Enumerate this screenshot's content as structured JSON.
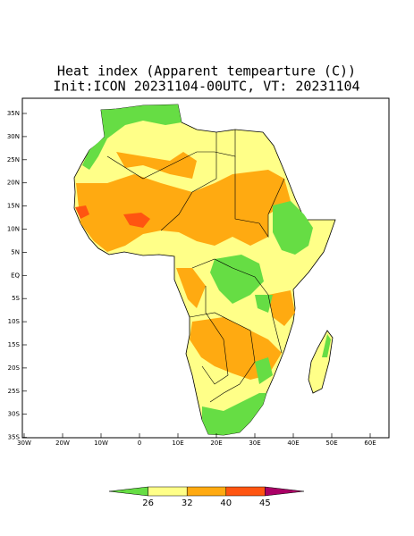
{
  "title": [
    "Heat index (Apparent tempearture (C))",
    "Init:ICON 20231104-00UTC, VT: 20231104"
  ],
  "map": {
    "lon_ticks": [
      "30W",
      "20W",
      "10W",
      "0",
      "10E",
      "20E",
      "30E",
      "40E",
      "50E",
      "60E"
    ],
    "lat_ticks": [
      "35N",
      "30N",
      "25N",
      "20N",
      "15N",
      "10N",
      "5N",
      "EQ",
      "5S",
      "10S",
      "15S",
      "20S",
      "25S",
      "30S",
      "35S"
    ]
  },
  "colorbar": {
    "levels": [
      26,
      32,
      40,
      45
    ],
    "colors": [
      "#66dd44",
      "#ffff88",
      "#ffaa11",
      "#ff5511",
      "#aa0066"
    ]
  }
}
